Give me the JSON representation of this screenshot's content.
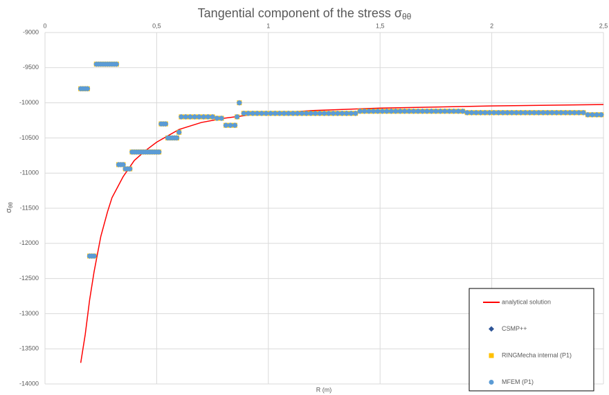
{
  "chart_data": {
    "type": "scatter",
    "title": {
      "text": "Tangential component of the stress σ",
      "subscript": "θθ"
    },
    "x_label": "R (m)",
    "y_label": {
      "text": "σ",
      "subscript": "θθ"
    },
    "xlim": [
      0,
      2.5
    ],
    "xticks": [
      0,
      {
        "value": 0.5,
        "label": "0,5"
      },
      1,
      {
        "value": 1.5,
        "label": "1,5"
      },
      2,
      {
        "value": 2.5,
        "label": "2,5"
      }
    ],
    "ylim": [
      -14000,
      -9000
    ],
    "yticks": [
      -9000,
      -9500,
      -10000,
      -10500,
      -11000,
      -11500,
      -12000,
      -12500,
      -13000,
      -13500,
      -14000
    ],
    "x_axis_position": "top",
    "grid": true,
    "legend": "lower right",
    "x": [
      0.16,
      0.17,
      0.18,
      0.19,
      0.2,
      0.21,
      0.22,
      0.23,
      0.24,
      0.25,
      0.26,
      0.27,
      0.28,
      0.29,
      0.3,
      0.31,
      0.32,
      0.33,
      0.34,
      0.35,
      0.36,
      0.37,
      0.38,
      0.39,
      0.4,
      0.41,
      0.42,
      0.43,
      0.44,
      0.45,
      0.46,
      0.47,
      0.48,
      0.49,
      0.5,
      0.51,
      0.52,
      0.53,
      0.54,
      0.55,
      0.56,
      0.57,
      0.58,
      0.59,
      0.6,
      0.61,
      0.63,
      0.65,
      0.67,
      0.69,
      0.71,
      0.73,
      0.75,
      0.77,
      0.79,
      0.81,
      0.83,
      0.85,
      0.86,
      0.87,
      0.89,
      0.91,
      0.93,
      0.95,
      0.97,
      0.99,
      1.01,
      1.03,
      1.05,
      1.07,
      1.09,
      1.11,
      1.13,
      1.15,
      1.17,
      1.19,
      1.21,
      1.23,
      1.25,
      1.27,
      1.29,
      1.31,
      1.33,
      1.35,
      1.37,
      1.39,
      1.41,
      1.43,
      1.45,
      1.47,
      1.49,
      1.51,
      1.53,
      1.55,
      1.57,
      1.59,
      1.61,
      1.63,
      1.65,
      1.67,
      1.69,
      1.71,
      1.73,
      1.75,
      1.77,
      1.79,
      1.81,
      1.83,
      1.85,
      1.87,
      1.89,
      1.91,
      1.93,
      1.95,
      1.97,
      1.99,
      2.01,
      2.03,
      2.05,
      2.07,
      2.09,
      2.11,
      2.13,
      2.15,
      2.17,
      2.19,
      2.21,
      2.23,
      2.25,
      2.27,
      2.29,
      2.31,
      2.33,
      2.35,
      2.37,
      2.39,
      2.41,
      2.43,
      2.45,
      2.47,
      2.49
    ],
    "series": [
      {
        "name": "analytical solution",
        "kind": "line",
        "color": "#ff0000",
        "x": [
          0.16,
          0.18,
          0.2,
          0.22,
          0.25,
          0.28,
          0.3,
          0.35,
          0.4,
          0.45,
          0.5,
          0.6,
          0.7,
          0.8,
          0.9,
          1.0,
          1.2,
          1.5,
          2.0,
          2.5
        ],
        "values": [
          -13700,
          -13300,
          -12800,
          -12400,
          -11900,
          -11550,
          -11350,
          -11050,
          -10820,
          -10680,
          -10560,
          -10380,
          -10280,
          -10220,
          -10180,
          -10150,
          -10110,
          -10075,
          -10045,
          -10025
        ]
      },
      {
        "name": "CSMP++",
        "kind": "diamond",
        "color": "#2f5597",
        "values": [
          -9800,
          -9800,
          -9800,
          -9800,
          -12180,
          -12180,
          -12180,
          -9450,
          -9450,
          -9450,
          -9450,
          -9450,
          -9450,
          -9450,
          -9450,
          -9450,
          -9450,
          -10880,
          -10880,
          -10880,
          -10940,
          -10940,
          -10940,
          -10700,
          -10700,
          -10700,
          -10700,
          -10700,
          -10700,
          -10700,
          -10700,
          -10700,
          -10700,
          -10700,
          -10700,
          -10700,
          -10300,
          -10300,
          -10300,
          -10500,
          -10500,
          -10500,
          -10500,
          -10500,
          -10420,
          -10200,
          -10200,
          -10200,
          -10200,
          -10200,
          -10200,
          -10200,
          -10200,
          -10220,
          -10220,
          -10320,
          -10320,
          -10320,
          -10200,
          -10000,
          -10150,
          -10150,
          -10150,
          -10150,
          -10150,
          -10150,
          -10150,
          -10150,
          -10150,
          -10150,
          -10150,
          -10150,
          -10150,
          -10150,
          -10150,
          -10150,
          -10150,
          -10150,
          -10150,
          -10150,
          -10150,
          -10150,
          -10150,
          -10150,
          -10150,
          -10150,
          -10120,
          -10120,
          -10120,
          -10120,
          -10120,
          -10120,
          -10120,
          -10120,
          -10120,
          -10120,
          -10120,
          -10120,
          -10120,
          -10120,
          -10120,
          -10120,
          -10120,
          -10120,
          -10120,
          -10120,
          -10120,
          -10120,
          -10120,
          -10120,
          -10140,
          -10140,
          -10140,
          -10140,
          -10140,
          -10140,
          -10140,
          -10140,
          -10140,
          -10140,
          -10140,
          -10140,
          -10140,
          -10140,
          -10140,
          -10140,
          -10140,
          -10140,
          -10140,
          -10140,
          -10140,
          -10140,
          -10140,
          -10140,
          -10140,
          -10140,
          -10140,
          -10170,
          -10170,
          -10170,
          -10170
        ]
      },
      {
        "name": "RINGMecha internal (P1)",
        "kind": "square",
        "color": "#ffc000",
        "values": [
          -9800,
          -9800,
          -9800,
          -9800,
          -12180,
          -12180,
          -12180,
          -9450,
          -9450,
          -9450,
          -9450,
          -9450,
          -9450,
          -9450,
          -9450,
          -9450,
          -9450,
          -10880,
          -10880,
          -10880,
          -10940,
          -10940,
          -10940,
          -10700,
          -10700,
          -10700,
          -10700,
          -10700,
          -10700,
          -10700,
          -10700,
          -10700,
          -10700,
          -10700,
          -10700,
          -10700,
          -10300,
          -10300,
          -10300,
          -10500,
          -10500,
          -10500,
          -10500,
          -10500,
          -10420,
          -10200,
          -10200,
          -10200,
          -10200,
          -10200,
          -10200,
          -10200,
          -10200,
          -10220,
          -10220,
          -10320,
          -10320,
          -10320,
          -10200,
          -10000,
          -10150,
          -10150,
          -10150,
          -10150,
          -10150,
          -10150,
          -10150,
          -10150,
          -10150,
          -10150,
          -10150,
          -10150,
          -10150,
          -10150,
          -10150,
          -10150,
          -10150,
          -10150,
          -10150,
          -10150,
          -10150,
          -10150,
          -10150,
          -10150,
          -10150,
          -10150,
          -10120,
          -10120,
          -10120,
          -10120,
          -10120,
          -10120,
          -10120,
          -10120,
          -10120,
          -10120,
          -10120,
          -10120,
          -10120,
          -10120,
          -10120,
          -10120,
          -10120,
          -10120,
          -10120,
          -10120,
          -10120,
          -10120,
          -10120,
          -10120,
          -10140,
          -10140,
          -10140,
          -10140,
          -10140,
          -10140,
          -10140,
          -10140,
          -10140,
          -10140,
          -10140,
          -10140,
          -10140,
          -10140,
          -10140,
          -10140,
          -10140,
          -10140,
          -10140,
          -10140,
          -10140,
          -10140,
          -10140,
          -10140,
          -10140,
          -10140,
          -10140,
          -10170,
          -10170,
          -10170,
          -10170
        ]
      },
      {
        "name": "MFEM (P1)",
        "kind": "circle",
        "color": "#5b9bd5",
        "values": [
          -9800,
          -9800,
          -9800,
          -9800,
          -12180,
          -12180,
          -12180,
          -9450,
          -9450,
          -9450,
          -9450,
          -9450,
          -9450,
          -9450,
          -9450,
          -9450,
          -9450,
          -10880,
          -10880,
          -10880,
          -10940,
          -10940,
          -10940,
          -10700,
          -10700,
          -10700,
          -10700,
          -10700,
          -10700,
          -10700,
          -10700,
          -10700,
          -10700,
          -10700,
          -10700,
          -10700,
          -10300,
          -10300,
          -10300,
          -10500,
          -10500,
          -10500,
          -10500,
          -10500,
          -10420,
          -10200,
          -10200,
          -10200,
          -10200,
          -10200,
          -10200,
          -10200,
          -10200,
          -10220,
          -10220,
          -10320,
          -10320,
          -10320,
          -10200,
          -10000,
          -10150,
          -10150,
          -10150,
          -10150,
          -10150,
          -10150,
          -10150,
          -10150,
          -10150,
          -10150,
          -10150,
          -10150,
          -10150,
          -10150,
          -10150,
          -10150,
          -10150,
          -10150,
          -10150,
          -10150,
          -10150,
          -10150,
          -10150,
          -10150,
          -10150,
          -10150,
          -10120,
          -10120,
          -10120,
          -10120,
          -10120,
          -10120,
          -10120,
          -10120,
          -10120,
          -10120,
          -10120,
          -10120,
          -10120,
          -10120,
          -10120,
          -10120,
          -10120,
          -10120,
          -10120,
          -10120,
          -10120,
          -10120,
          -10120,
          -10120,
          -10140,
          -10140,
          -10140,
          -10140,
          -10140,
          -10140,
          -10140,
          -10140,
          -10140,
          -10140,
          -10140,
          -10140,
          -10140,
          -10140,
          -10140,
          -10140,
          -10140,
          -10140,
          -10140,
          -10140,
          -10140,
          -10140,
          -10140,
          -10140,
          -10140,
          -10140,
          -10140,
          -10170,
          -10170,
          -10170,
          -10170
        ]
      }
    ]
  }
}
